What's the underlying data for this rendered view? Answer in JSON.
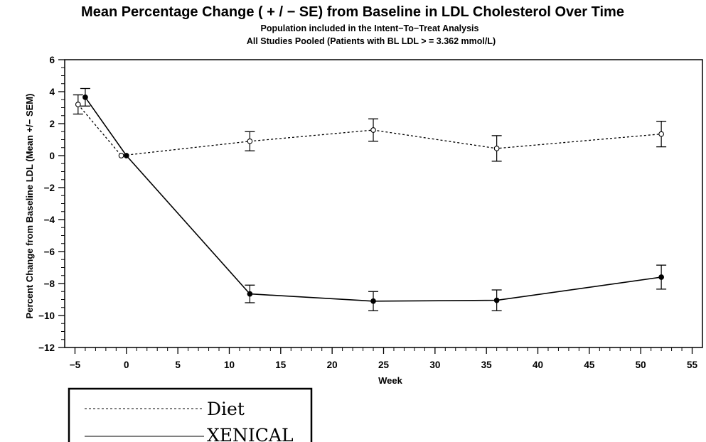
{
  "chart_data": {
    "type": "line",
    "title": "Mean Percentage Change ( + / − SE) from Baseline in LDL Cholesterol Over Time",
    "subtitle_1": "Population included in the Intent−To−Treat Analysis",
    "subtitle_2": "All Studies Pooled (Patients with BL LDL > = 3.362 mmol/L)",
    "xlabel": "Week",
    "ylabel": "Percent Change from Baseline LDL (Mean +/− SEM)",
    "xlim": [
      -6,
      56
    ],
    "ylim": [
      -12,
      6
    ],
    "xticks": [
      -5,
      0,
      5,
      10,
      15,
      20,
      25,
      30,
      35,
      40,
      45,
      50,
      55
    ],
    "xtick_labels": [
      "−5",
      "0",
      "5",
      "10",
      "15",
      "20",
      "25",
      "30",
      "35",
      "40",
      "45",
      "50",
      "55"
    ],
    "yticks": [
      -12,
      -10,
      -8,
      -6,
      -4,
      -2,
      0,
      2,
      4,
      6
    ],
    "ytick_labels": [
      "−12",
      "−10",
      "−8",
      "−6",
      "−4",
      "−2",
      "0",
      "2",
      "4",
      "6"
    ],
    "legend_position": "bottom-left, below plot",
    "series": [
      {
        "name": "Diet",
        "line_style": "dashed",
        "marker": "open-circle",
        "color": "#000000",
        "points": [
          {
            "x": -4.7,
            "y": 3.2,
            "se": 0.6
          },
          {
            "x": -0.5,
            "y": 0.0,
            "se": 0.0
          },
          {
            "x": 12,
            "y": 0.9,
            "se": 0.6
          },
          {
            "x": 24,
            "y": 1.6,
            "se": 0.7
          },
          {
            "x": 36,
            "y": 0.45,
            "se": 0.8
          },
          {
            "x": 52,
            "y": 1.35,
            "se": 0.8
          }
        ]
      },
      {
        "name": "XENICAL",
        "line_style": "solid",
        "marker": "filled-circle",
        "color": "#000000",
        "points": [
          {
            "x": -4.0,
            "y": 3.65,
            "se": 0.55
          },
          {
            "x": 0,
            "y": 0.0,
            "se": 0.0
          },
          {
            "x": 12,
            "y": -8.65,
            "se": 0.55
          },
          {
            "x": 24,
            "y": -9.1,
            "se": 0.6
          },
          {
            "x": 36,
            "y": -9.05,
            "se": 0.65
          },
          {
            "x": 52,
            "y": -7.6,
            "se": 0.75
          }
        ]
      }
    ]
  }
}
